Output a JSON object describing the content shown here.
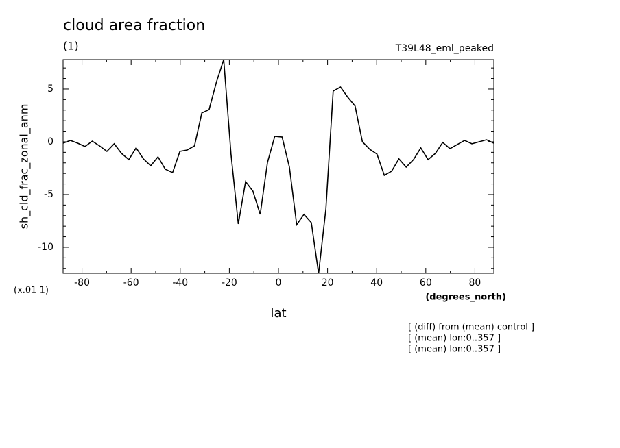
{
  "chart_data": {
    "type": "line",
    "title": "cloud area fraction",
    "subtitle": "(1)",
    "dataset": "T39L48_eml_peaked",
    "y_label": "sh_cld_frac_zonal_anm",
    "y_units": "(x.01 1)",
    "x_label": "lat",
    "x_units": "(degrees_north)",
    "notes": [
      "[ (diff) from (mean) control ]",
      "[ (mean) lon:0..357 ]",
      "[ (mean) lon:0..357 ]"
    ],
    "color": "#000000",
    "x": [
      -87.7,
      -84.73,
      -81.75,
      -78.78,
      -75.81,
      -72.84,
      -69.86,
      -66.89,
      -63.92,
      -60.94,
      -57.97,
      -55,
      -52.02,
      -49.05,
      -46.08,
      -43.11,
      -40.13,
      -37.16,
      -34.19,
      -31.21,
      -28.24,
      -25.27,
      -22.29,
      -19.32,
      -16.35,
      -13.38,
      -10.4,
      -7.43,
      -4.46,
      -1.49,
      1.49,
      4.46,
      7.43,
      10.4,
      13.38,
      16.35,
      19.32,
      22.29,
      25.27,
      28.24,
      31.21,
      34.19,
      37.16,
      40.13,
      43.11,
      46.08,
      49.05,
      52.02,
      55,
      57.97,
      60.94,
      63.92,
      66.89,
      69.86,
      72.84,
      75.81,
      78.78,
      81.75,
      84.73,
      87.7
    ],
    "values": [
      -0.13,
      0.13,
      -0.13,
      -0.45,
      0.06,
      -0.39,
      -0.91,
      -0.19,
      -1.1,
      -1.69,
      -0.58,
      -1.62,
      -2.27,
      -1.43,
      -2.6,
      -2.92,
      -0.91,
      -0.78,
      -0.39,
      2.73,
      3.05,
      5.65,
      7.79,
      -1.17,
      -7.79,
      -3.77,
      -4.68,
      -6.88,
      -1.95,
      0.52,
      0.45,
      -2.4,
      -7.86,
      -6.88,
      -7.66,
      -12.47,
      -6.36,
      4.81,
      5.19,
      4.22,
      3.38,
      0,
      -0.71,
      -1.17,
      -3.18,
      -2.79,
      -1.62,
      -2.4,
      -1.69,
      -0.58,
      -1.69,
      -1.1,
      -0.06,
      -0.65,
      -0.26,
      0.13,
      -0.19,
      0,
      0.19,
      -0.13
    ],
    "xlim": [
      -87.7,
      87.7
    ],
    "ylim": [
      -12.47,
      7.79
    ],
    "xticks": [
      -80,
      -60,
      -40,
      -20,
      0,
      20,
      40,
      60,
      80
    ],
    "xminorticks": [
      -70,
      -50,
      -30,
      -10,
      10,
      30,
      50,
      70
    ],
    "yticks": [
      -10,
      -5,
      0,
      5
    ],
    "yminorticks": [
      -12,
      -11,
      -9,
      -8,
      -7,
      -6,
      -4,
      -3,
      -2,
      -1,
      1,
      2,
      3,
      4,
      6,
      7
    ]
  }
}
